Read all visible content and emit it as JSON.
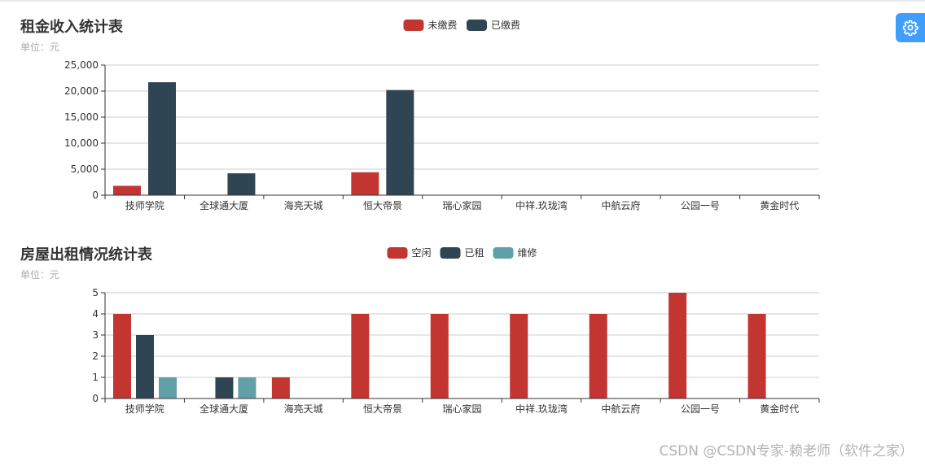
{
  "settings_icon": "gear-icon",
  "settings_color": "#409eff",
  "watermark": "CSDN @CSDN专家-赖老师（软件之家）",
  "chart_data": [
    {
      "type": "bar",
      "title": "租金收入统计表",
      "subtitle": "单位：元",
      "categories": [
        "技师学院",
        "全球通大厦",
        "海亮天城",
        "恒大帝景",
        "瑞心家园",
        "中祥.玖珑湾",
        "中航云府",
        "公园一号",
        "黄金时代"
      ],
      "series": [
        {
          "name": "未缴费",
          "color": "#c23531",
          "values": [
            1800,
            0,
            0,
            4400,
            0,
            0,
            0,
            0,
            0
          ]
        },
        {
          "name": "已缴费",
          "color": "#2f4554",
          "values": [
            21700,
            4200,
            0,
            20200,
            0,
            0,
            0,
            0,
            0
          ]
        }
      ],
      "ylim": [
        0,
        25000
      ],
      "yticks": [
        "0",
        "5,000",
        "10,000",
        "15,000",
        "20,000",
        "25,000"
      ],
      "ytick_values": [
        0,
        5000,
        10000,
        15000,
        20000,
        25000
      ],
      "grid": true,
      "legend": "top-center"
    },
    {
      "type": "bar",
      "title": "房屋出租情况统计表",
      "subtitle": "单位：元",
      "categories": [
        "技师学院",
        "全球通大厦",
        "海亮天城",
        "恒大帝景",
        "瑞心家园",
        "中祥.玖珑湾",
        "中航云府",
        "公园一号",
        "黄金时代"
      ],
      "series": [
        {
          "name": "空闲",
          "color": "#c23531",
          "values": [
            4,
            0,
            1,
            4,
            4,
            4,
            4,
            5,
            4
          ]
        },
        {
          "name": "已租",
          "color": "#2f4554",
          "values": [
            3,
            1,
            0,
            0,
            0,
            0,
            0,
            0,
            0
          ]
        },
        {
          "name": "维修",
          "color": "#61a0a8",
          "values": [
            1,
            1,
            0,
            0,
            0,
            0,
            0,
            0,
            0
          ]
        }
      ],
      "ylim": [
        0,
        5
      ],
      "yticks": [
        "0",
        "1",
        "2",
        "3",
        "4",
        "5"
      ],
      "ytick_values": [
        0,
        1,
        2,
        3,
        4,
        5
      ],
      "grid": true,
      "legend": "top-center"
    }
  ]
}
